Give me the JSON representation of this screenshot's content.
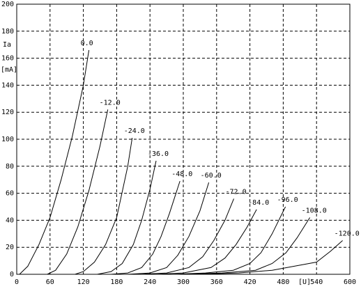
{
  "chart_data": {
    "type": "line",
    "x_label": "[U]",
    "y_label": "Ia",
    "y_unit_label": "[mA]",
    "xlim": [
      0,
      600
    ],
    "xticks": [
      0,
      60,
      120,
      180,
      240,
      300,
      360,
      420,
      480,
      540,
      600
    ],
    "ylim": [
      0,
      200
    ],
    "yticks": [
      0,
      20,
      40,
      60,
      80,
      100,
      120,
      140,
      160,
      180,
      200
    ],
    "grid": true,
    "color": "#000000",
    "series": [
      {
        "name": "0.0",
        "x": [
          5,
          20,
          40,
          60,
          80,
          100,
          120,
          130
        ],
        "values": [
          0,
          6,
          22,
          42,
          70,
          102,
          140,
          166
        ]
      },
      {
        "name": "-12.0",
        "x": [
          55,
          70,
          90,
          110,
          130,
          150,
          164
        ],
        "values": [
          0,
          3,
          15,
          35,
          62,
          95,
          122
        ]
      },
      {
        "name": "-24.0",
        "x": [
          105,
          120,
          140,
          160,
          180,
          200,
          208
        ],
        "values": [
          0,
          2,
          9,
          22,
          42,
          80,
          101
        ]
      },
      {
        "name": "-36.0",
        "x": [
          145,
          170,
          190,
          210,
          225,
          240,
          251
        ],
        "values": [
          0,
          2,
          8,
          22,
          40,
          63,
          84
        ]
      },
      {
        "name": "-48.0",
        "x": [
          170,
          200,
          225,
          245,
          260,
          275,
          294
        ],
        "values": [
          0,
          1,
          5,
          15,
          28,
          45,
          69
        ]
      },
      {
        "name": "-60.0",
        "x": [
          200,
          240,
          270,
          290,
          310,
          330,
          346
        ],
        "values": [
          0,
          1,
          5,
          14,
          28,
          47,
          68
        ]
      },
      {
        "name": "-72.0",
        "x": [
          220,
          270,
          310,
          335,
          355,
          375,
          391
        ],
        "values": [
          0,
          1,
          5,
          13,
          25,
          40,
          56
        ]
      },
      {
        "name": "-84.0",
        "x": [
          250,
          300,
          350,
          375,
          395,
          415,
          432
        ],
        "values": [
          0,
          1,
          5,
          12,
          22,
          35,
          48
        ]
      },
      {
        "name": "-96.0",
        "x": [
          280,
          340,
          390,
          420,
          440,
          460,
          484
        ],
        "values": [
          0,
          1,
          3,
          8,
          16,
          30,
          50
        ]
      },
      {
        "name": "-108.0",
        "x": [
          300,
          370,
          430,
          460,
          485,
          505,
          528
        ],
        "values": [
          0,
          1,
          3,
          8,
          16,
          27,
          42
        ]
      },
      {
        "name": "-120.0",
        "x": [
          320,
          400,
          460,
          500,
          540,
          565,
          587
        ],
        "values": [
          0,
          1,
          3,
          6,
          9,
          17,
          25
        ]
      }
    ]
  }
}
